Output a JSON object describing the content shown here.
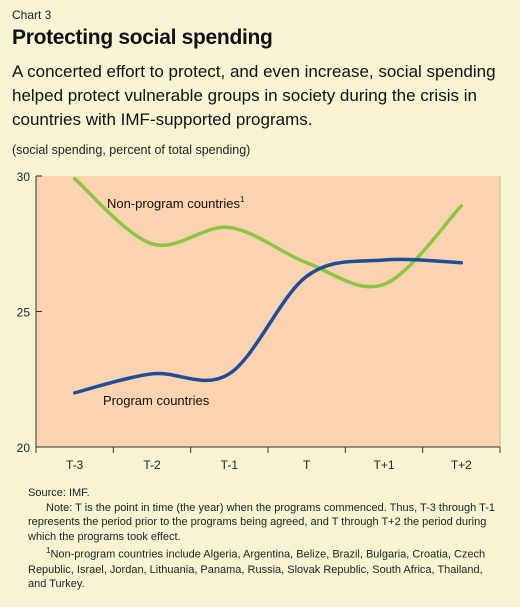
{
  "header": {
    "chart_number": "Chart 3",
    "title": "Protecting social spending",
    "subtitle": "A concerted effort to protect, and even increase, social spending helped protect vulnerable groups in society during the crisis in countries with IMF-supported programs."
  },
  "colors": {
    "background": "#f7f4d3",
    "plot_area": "#fbd3b1",
    "non_program": "#8cc63f",
    "program": "#1f4e96"
  },
  "chart_data": {
    "type": "line",
    "title": "Protecting social spending",
    "ylabel": "(social spending, percent of total spending)",
    "categories": [
      "T-3",
      "T-2",
      "T-1",
      "T",
      "T+1",
      "T+2"
    ],
    "ylim": [
      20,
      30
    ],
    "yticks": [
      20,
      25,
      30
    ],
    "grid": false,
    "series": [
      {
        "name": "Non-program countries",
        "superscript": "1",
        "values": [
          29.9,
          27.5,
          28.1,
          26.8,
          26.0,
          28.9
        ]
      },
      {
        "name": "Program countries",
        "values": [
          22.0,
          22.7,
          22.7,
          26.3,
          26.9,
          26.8
        ]
      }
    ]
  },
  "footnotes": {
    "source": "Source: IMF.",
    "note": "Note: T is the point in time (the year) when the programs commenced. Thus, T-3 through T-1 represents the period prior to the programs being agreed, and T through T+2 the period during which the programs took effect.",
    "footnote_mark": "1",
    "footnote_text": "Non-program countries include Algeria, Argentina, Belize, Brazil, Bulgaria, Croatia, Czech Republic, Israel, Jordan, Lithuania, Panama, Russia, Slovak Republic, South Africa, Thailand, and Turkey."
  }
}
